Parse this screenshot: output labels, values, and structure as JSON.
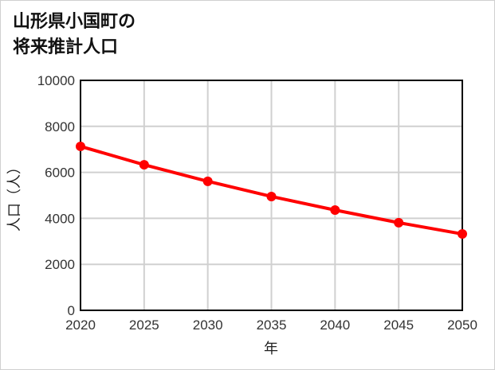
{
  "title_line1": "山形県小国町の",
  "title_line2": "将来推計人口",
  "chart_data": {
    "type": "line",
    "title": "山形県小国町の将来推計人口",
    "xlabel": "年",
    "ylabel": "人口（人）",
    "categories": [
      "2020",
      "2025",
      "2030",
      "2035",
      "2040",
      "2045",
      "2050"
    ],
    "series": [
      {
        "name": "人口",
        "color": "#ff0000",
        "values": [
          7130,
          6330,
          5610,
          4950,
          4360,
          3810,
          3320
        ]
      }
    ],
    "yticks": [
      "0",
      "2000",
      "4000",
      "6000",
      "8000",
      "10000"
    ],
    "ylim": [
      0,
      10000
    ],
    "grid": true,
    "legend": "none"
  }
}
